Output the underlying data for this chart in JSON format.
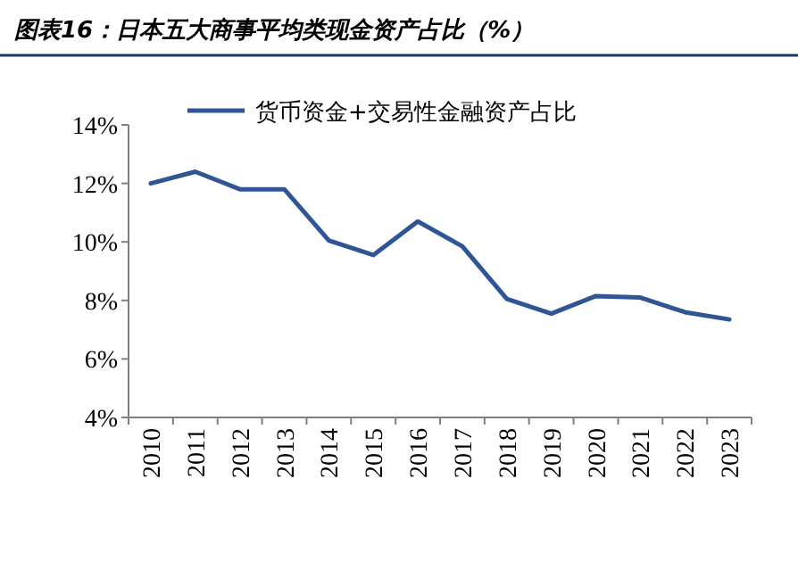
{
  "chart_data": {
    "type": "line",
    "title": "图表16：日本五大商事平均类现金资产占比（%）",
    "categories": [
      "2010",
      "2011",
      "2012",
      "2013",
      "2014",
      "2015",
      "2016",
      "2017",
      "2018",
      "2019",
      "2020",
      "2021",
      "2022",
      "2023"
    ],
    "series": [
      {
        "name": "货币资金+交易性金融资产占比",
        "color": "#2f5597",
        "values": [
          12.0,
          12.4,
          11.8,
          11.8,
          10.05,
          9.55,
          10.7,
          9.85,
          8.05,
          7.55,
          8.15,
          8.1,
          7.6,
          7.35
        ]
      }
    ],
    "ylim": [
      4,
      14
    ],
    "yticks": [
      {
        "value": 4,
        "label": "4%"
      },
      {
        "value": 6,
        "label": "6%"
      },
      {
        "value": 8,
        "label": "8%"
      },
      {
        "value": 10,
        "label": "10%"
      },
      {
        "value": 12,
        "label": "12%"
      },
      {
        "value": 14,
        "label": "14%"
      }
    ],
    "grid": false,
    "legend": "top",
    "marker": "none",
    "line_style": "solid"
  }
}
